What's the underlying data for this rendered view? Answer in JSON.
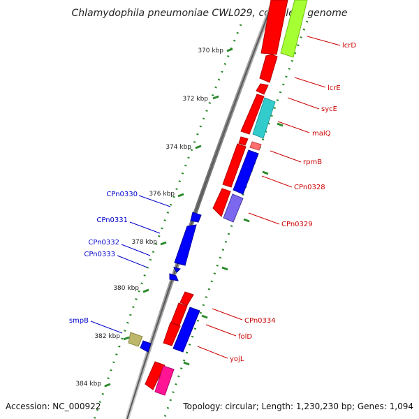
{
  "title": "Chlamydophila pneumoniae CWL029, complete genome",
  "footer": {
    "accession": "Accession: NC_000922",
    "topology": "Topology: circular; Length: 1,230,230 bp; Genes: 1,094"
  },
  "ticks": [
    "370 kbp",
    "372 kbp",
    "374 kbp",
    "376 kbp",
    "378 kbp",
    "380 kbp",
    "382 kbp",
    "384 kbp"
  ],
  "gene_labels_right": [
    "lcrD",
    "lcrE",
    "sycE",
    "malQ",
    "rpmB",
    "CPn0328",
    "CPn0329",
    "CPn0334",
    "folD",
    "yojL"
  ],
  "gene_labels_left": [
    "CPn0330",
    "CPn0331",
    "CPn0332",
    "CPn0333",
    "smpB"
  ],
  "colors": {
    "red": "#ff0000",
    "blue": "#0000ff",
    "label_red": "#cc0000",
    "label_blue": "#0000cc",
    "green_ticks": "#2a8a2a",
    "lime": "#a6ff33",
    "cyan": "#33cccc",
    "pink": "#ff6f6f",
    "purple": "#7b68ee",
    "olive": "#bdb76b",
    "magenta": "#ff1493",
    "backbone": "#888888"
  }
}
